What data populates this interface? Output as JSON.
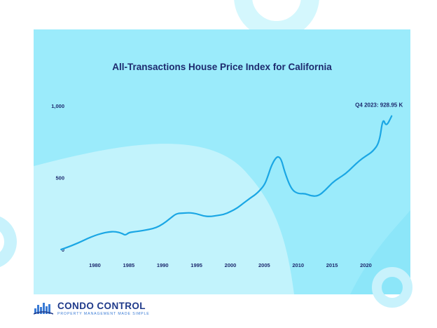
{
  "chart_data": {
    "type": "line",
    "title": "All-Transactions House Price Index for California",
    "xlabel": "",
    "ylabel": "",
    "xlim": [
      1975.5,
      2024.5
    ],
    "ylim": [
      -20,
      1000
    ],
    "x_ticks": [
      1980,
      1985,
      1990,
      1995,
      2000,
      2005,
      2010,
      2015,
      2020
    ],
    "y_ticks": [
      0,
      500,
      1000
    ],
    "y_tick_labels": [
      "0",
      "500",
      "1,000"
    ],
    "grid": false,
    "line_color": "#1aa6e4",
    "annotation": {
      "text": "Q4 2023: 928.95 K",
      "x": 2023.8,
      "y": 929
    },
    "series": [
      {
        "x": [
          1975,
          1976,
          1977,
          1978,
          1979,
          1980,
          1981,
          1982,
          1983,
          1984,
          1984.5,
          1985,
          1986,
          1987,
          1988,
          1989,
          1990,
          1991,
          1992,
          1993,
          1994,
          1995,
          1996,
          1997,
          1998,
          1999,
          2000,
          2001,
          2002,
          2003,
          2004,
          2005,
          2005.5,
          2006,
          2006.5,
          2007,
          2007.5,
          2008,
          2009,
          2010,
          2011,
          2012,
          2013,
          2014,
          2015,
          2016,
          2017,
          2018,
          2019,
          2020,
          2021,
          2022,
          2022.5,
          2023,
          2023.8
        ],
        "y": [
          0,
          16,
          35,
          55,
          78,
          97,
          112,
          122,
          125,
          112,
          98,
          118,
          124,
          131,
          139,
          151,
          175,
          212,
          250,
          253,
          256,
          249,
          233,
          229,
          236,
          243,
          263,
          288,
          325,
          360,
          393,
          446,
          505,
          577,
          624,
          650,
          630,
          540,
          417,
          387,
          390,
          371,
          373,
          412,
          463,
          497,
          527,
          572,
          617,
          651,
          681,
          745,
          918,
          853,
          929
        ]
      }
    ]
  },
  "brand": {
    "name": "CONDO CONTROL",
    "tagline": "PROPERTY MANAGEMENT MADE SIMPLE",
    "accent": "#1f3a8a",
    "background_colors": [
      "#9bebfb",
      "#b9f2fc",
      "#6ddcf7"
    ]
  }
}
